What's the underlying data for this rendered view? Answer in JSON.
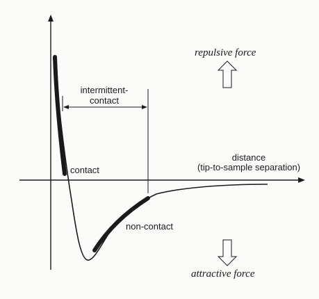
{
  "figure": {
    "labels": {
      "repulsive": "repulsive force",
      "attractive": "attractive force",
      "intermittent_line1": "intermittent-",
      "intermittent_line2": "contact",
      "distance_line1": "distance",
      "distance_line2": "(tip-to-sample separation)",
      "contact": "contact",
      "non_contact": "non-contact"
    },
    "colors": {
      "ink": "#1a1a1a",
      "background": "#fbfbf9"
    }
  }
}
